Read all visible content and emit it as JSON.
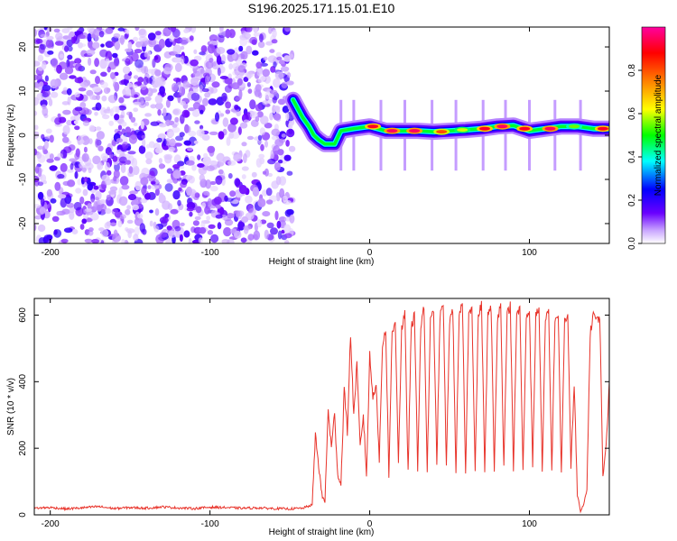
{
  "title": "S196.2025.171.15.01.E10",
  "chart_data": [
    {
      "type": "heatmap",
      "xlabel": "Height of straight line (km)",
      "ylabel": "Frequency (Hz)",
      "xlim": [
        -210,
        150
      ],
      "ylim": [
        -24.5,
        24.5
      ],
      "x_ticks": [
        -200,
        -100,
        0,
        100
      ],
      "y_ticks": [
        -20,
        -10,
        0,
        10,
        20
      ],
      "colorbar": {
        "label": "Normalized spectral amplitude",
        "range": [
          0.0,
          1.0
        ],
        "ticks": [
          0.0,
          0.2,
          0.4,
          0.6,
          0.8
        ],
        "tick_labels": [
          "0.0",
          "0.2",
          "0.4",
          "0.6",
          "0.8"
        ],
        "colormap": [
          "#ffffff",
          "#6a00ff",
          "#0000ff",
          "#00ffff",
          "#00ff00",
          "#ffff00",
          "#ff8000",
          "#ff0000",
          "#ff00a0"
        ]
      },
      "noise_region": {
        "x_range": [
          -210,
          -48
        ],
        "y_range": [
          -24.5,
          24.5
        ],
        "amplitude_range": [
          0.0,
          0.2
        ]
      },
      "ridge_path": [
        {
          "x": -48,
          "y": 8
        },
        {
          "x": -45,
          "y": 6
        },
        {
          "x": -42,
          "y": 4
        },
        {
          "x": -38,
          "y": 2
        },
        {
          "x": -35,
          "y": 0
        },
        {
          "x": -32,
          "y": -1
        },
        {
          "x": -28,
          "y": -2
        },
        {
          "x": -22,
          "y": -2
        },
        {
          "x": -18,
          "y": 1
        },
        {
          "x": -10,
          "y": 1.5
        },
        {
          "x": 0,
          "y": 2
        },
        {
          "x": 10,
          "y": 1
        },
        {
          "x": 20,
          "y": 1
        },
        {
          "x": 30,
          "y": 1
        },
        {
          "x": 40,
          "y": 0.8
        },
        {
          "x": 50,
          "y": 1
        },
        {
          "x": 60,
          "y": 1.2
        },
        {
          "x": 70,
          "y": 1.5
        },
        {
          "x": 80,
          "y": 2
        },
        {
          "x": 90,
          "y": 2.2
        },
        {
          "x": 100,
          "y": 1
        },
        {
          "x": 110,
          "y": 1.5
        },
        {
          "x": 120,
          "y": 2
        },
        {
          "x": 130,
          "y": 2
        },
        {
          "x": 140,
          "y": 1.5
        },
        {
          "x": 150,
          "y": 1.5
        }
      ],
      "ridge_peaks": [
        {
          "x": 2,
          "y": 2,
          "amp": 0.9
        },
        {
          "x": 14,
          "y": 1,
          "amp": 0.95
        },
        {
          "x": 28,
          "y": 1,
          "amp": 0.95
        },
        {
          "x": 45,
          "y": 0.8,
          "amp": 0.8
        },
        {
          "x": 58,
          "y": 1.2,
          "amp": 0.6
        },
        {
          "x": 72,
          "y": 1.5,
          "amp": 0.9
        },
        {
          "x": 83,
          "y": 2,
          "amp": 0.95
        },
        {
          "x": 97,
          "y": 1.5,
          "amp": 0.9
        },
        {
          "x": 113,
          "y": 1.5,
          "amp": 0.95
        },
        {
          "x": 128,
          "y": 2,
          "amp": 0.55
        },
        {
          "x": 146,
          "y": 1.5,
          "amp": 0.9
        }
      ],
      "vertical_streaks_x": [
        -18,
        -10,
        7,
        22,
        39,
        54,
        71,
        85,
        100,
        116,
        132
      ]
    },
    {
      "type": "line",
      "xlabel": "Height of straight line (km)",
      "ylabel": "SNR (10 * v/v)",
      "xlim": [
        -210,
        150
      ],
      "ylim": [
        0,
        650
      ],
      "x_ticks": [
        -200,
        -100,
        0,
        100
      ],
      "y_ticks": [
        0,
        200,
        400,
        600
      ],
      "color": "#e8332a",
      "series": [
        {
          "x": [
            -210,
            -200,
            -190,
            -180,
            -170,
            -160,
            -150,
            -140,
            -130,
            -120,
            -110,
            -100,
            -90,
            -80,
            -70,
            -60,
            -50,
            -42,
            -36,
            -34,
            -32,
            -30,
            -28,
            -26,
            -24,
            -22,
            -20,
            -18,
            -16,
            -14,
            -12,
            -10,
            -8,
            -6,
            -4,
            -2,
            0,
            2,
            4,
            6,
            8,
            10,
            12,
            14,
            16,
            18,
            20,
            22,
            24,
            26,
            28,
            30,
            32,
            34,
            36,
            38,
            40,
            42,
            44,
            46,
            48,
            50,
            52,
            54,
            56,
            58,
            60,
            62,
            64,
            66,
            68,
            70,
            72,
            74,
            76,
            78,
            80,
            82,
            84,
            86,
            88,
            90,
            92,
            94,
            96,
            98,
            100,
            102,
            104,
            106,
            108,
            110,
            112,
            114,
            116,
            118,
            120,
            122,
            124,
            126,
            128,
            130,
            132,
            134,
            136,
            138,
            140,
            142,
            144,
            146,
            148,
            150
          ],
          "y": [
            20,
            22,
            18,
            21,
            25,
            19,
            22,
            20,
            24,
            21,
            19,
            23,
            22,
            20,
            21,
            19,
            18,
            20,
            30,
            240,
            150,
            60,
            40,
            320,
            200,
            300,
            120,
            90,
            380,
            250,
            540,
            300,
            450,
            200,
            300,
            120,
            480,
            350,
            400,
            160,
            510,
            560,
            120,
            540,
            580,
            160,
            560,
            600,
            130,
            560,
            600,
            140,
            570,
            620,
            130,
            580,
            610,
            150,
            590,
            640,
            140,
            580,
            620,
            130,
            590,
            640,
            130,
            600,
            630,
            130,
            600,
            630,
            130,
            600,
            620,
            130,
            590,
            630,
            140,
            600,
            630,
            130,
            600,
            620,
            130,
            590,
            620,
            140,
            600,
            620,
            130,
            580,
            610,
            130,
            590,
            600,
            120,
            580,
            600,
            140,
            400,
            60,
            10,
            30,
            80,
            540,
            610,
            580,
            600,
            120,
            200,
            400
          ]
        }
      ]
    }
  ]
}
